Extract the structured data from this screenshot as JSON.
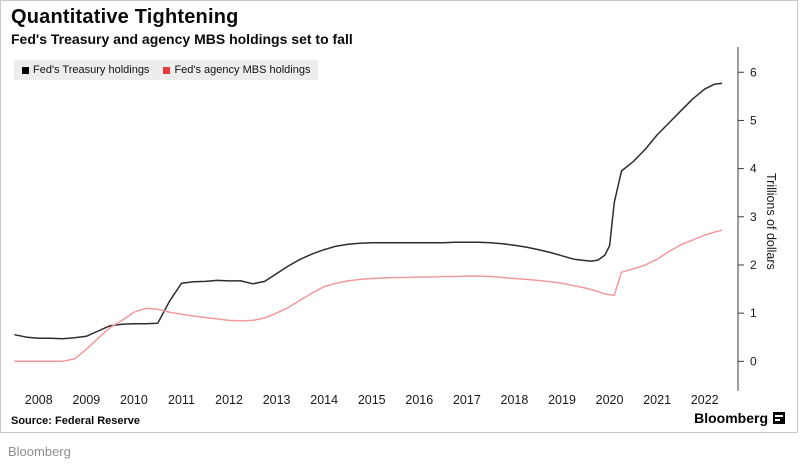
{
  "chart_data": {
    "type": "line",
    "title": "Quantitative Tightening",
    "subtitle": "Fed's Treasury and agency MBS holdings set to fall",
    "ylabel": "Trillions of dollars",
    "xlabel": "",
    "grid": false,
    "legend_position": "top-left",
    "xlim": [
      2007.5,
      2022.7
    ],
    "ylim": [
      -0.45,
      6.4
    ],
    "x_ticks": [
      2008,
      2009,
      2010,
      2011,
      2012,
      2013,
      2014,
      2015,
      2016,
      2017,
      2018,
      2019,
      2020,
      2021,
      2022
    ],
    "y_ticks": [
      0,
      1,
      2,
      3,
      4,
      5,
      6
    ],
    "series": [
      {
        "name": "Fed's Treasury holdings",
        "color": "#2d2d2d",
        "swatch": "#000000",
        "x": [
          2007.5,
          2007.75,
          2008.0,
          2008.25,
          2008.5,
          2008.75,
          2009.0,
          2009.25,
          2009.5,
          2009.75,
          2010.0,
          2010.25,
          2010.5,
          2010.75,
          2011.0,
          2011.25,
          2011.5,
          2011.75,
          2012.0,
          2012.25,
          2012.5,
          2012.75,
          2013.0,
          2013.25,
          2013.5,
          2013.75,
          2014.0,
          2014.25,
          2014.5,
          2014.75,
          2015.0,
          2015.25,
          2015.5,
          2015.75,
          2016.0,
          2016.25,
          2016.5,
          2016.75,
          2017.0,
          2017.25,
          2017.5,
          2017.75,
          2018.0,
          2018.25,
          2018.5,
          2018.75,
          2019.0,
          2019.25,
          2019.5,
          2019.6,
          2019.75,
          2019.9,
          2020.0,
          2020.1,
          2020.25,
          2020.5,
          2020.75,
          2021.0,
          2021.25,
          2021.5,
          2021.75,
          2022.0,
          2022.2,
          2022.35
        ],
        "y": [
          0.55,
          0.5,
          0.48,
          0.48,
          0.47,
          0.49,
          0.52,
          0.63,
          0.74,
          0.77,
          0.78,
          0.78,
          0.79,
          1.25,
          1.62,
          1.65,
          1.66,
          1.68,
          1.67,
          1.67,
          1.61,
          1.66,
          1.82,
          1.98,
          2.12,
          2.23,
          2.32,
          2.39,
          2.43,
          2.45,
          2.46,
          2.46,
          2.46,
          2.46,
          2.46,
          2.46,
          2.46,
          2.47,
          2.47,
          2.47,
          2.46,
          2.44,
          2.41,
          2.37,
          2.32,
          2.26,
          2.19,
          2.12,
          2.09,
          2.08,
          2.1,
          2.2,
          2.4,
          3.3,
          3.95,
          4.15,
          4.4,
          4.7,
          4.95,
          5.2,
          5.45,
          5.65,
          5.75,
          5.77
        ]
      },
      {
        "name": "Fed's agency MBS holdings",
        "color": "#f09a9d",
        "swatch": "#e8393d",
        "x": [
          2007.5,
          2008.0,
          2008.5,
          2008.75,
          2009.0,
          2009.25,
          2009.5,
          2009.75,
          2010.0,
          2010.25,
          2010.5,
          2010.75,
          2011.0,
          2011.25,
          2011.5,
          2011.75,
          2012.0,
          2012.25,
          2012.5,
          2012.75,
          2013.0,
          2013.25,
          2013.5,
          2013.75,
          2014.0,
          2014.25,
          2014.5,
          2014.75,
          2015.0,
          2015.25,
          2015.5,
          2015.75,
          2016.0,
          2016.25,
          2016.5,
          2016.75,
          2017.0,
          2017.25,
          2017.5,
          2017.75,
          2018.0,
          2018.25,
          2018.5,
          2018.75,
          2019.0,
          2019.25,
          2019.5,
          2019.75,
          2019.9,
          2020.0,
          2020.1,
          2020.25,
          2020.5,
          2020.75,
          2021.0,
          2021.25,
          2021.5,
          2021.75,
          2022.0,
          2022.2,
          2022.35
        ],
        "y": [
          0.0,
          0.0,
          0.0,
          0.05,
          0.25,
          0.48,
          0.7,
          0.85,
          1.02,
          1.1,
          1.08,
          1.02,
          0.98,
          0.94,
          0.91,
          0.88,
          0.85,
          0.84,
          0.85,
          0.9,
          1.0,
          1.12,
          1.27,
          1.42,
          1.55,
          1.62,
          1.67,
          1.7,
          1.72,
          1.73,
          1.74,
          1.74,
          1.75,
          1.75,
          1.76,
          1.76,
          1.77,
          1.77,
          1.76,
          1.74,
          1.72,
          1.7,
          1.68,
          1.65,
          1.62,
          1.57,
          1.52,
          1.45,
          1.4,
          1.38,
          1.37,
          1.85,
          1.92,
          2.0,
          2.12,
          2.28,
          2.42,
          2.52,
          2.62,
          2.68,
          2.72
        ]
      }
    ]
  },
  "footer": {
    "source": "Source:  Federal Reserve",
    "brand": "Bloomberg"
  },
  "page": {
    "watermark": "Bloomberg"
  }
}
